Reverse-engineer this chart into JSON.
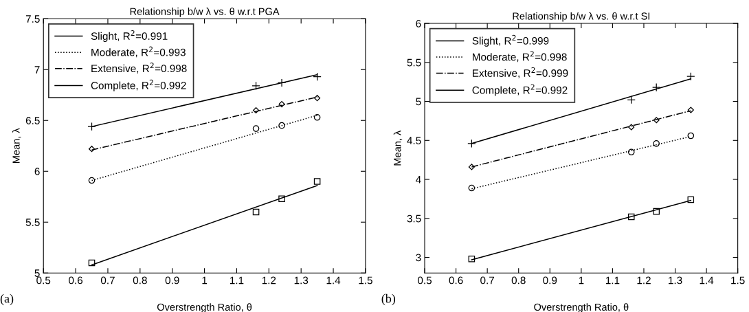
{
  "chart_data": [
    {
      "type": "line",
      "title": "Relationship b/w λ vs. θ w.r.t PGA",
      "xlabel": "Overstrength Ratio, θ",
      "ylabel": "Mean, λ",
      "annotations": [
        "(a)"
      ],
      "xlim": [
        0.5,
        1.5
      ],
      "xticks": [
        0.5,
        0.6,
        0.7,
        0.8,
        0.9,
        1,
        1.1,
        1.2,
        1.3,
        1.4,
        1.5
      ],
      "ylim": [
        5,
        7.5
      ],
      "yticks": [
        5,
        5.5,
        6,
        6.5,
        7,
        7.5
      ],
      "grid": false,
      "legend": "top left",
      "series": [
        {
          "type": "scatter",
          "color": "#000000",
          "marker": "square",
          "x": [
            0.65,
            1.16,
            1.24,
            1.35
          ],
          "values": [
            5.1,
            5.6,
            5.73,
            5.9
          ]
        },
        {
          "type": "scatter",
          "color": "#000000",
          "marker": "circle",
          "x": [
            0.65,
            1.16,
            1.24,
            1.35
          ],
          "values": [
            5.91,
            6.42,
            6.45,
            6.53
          ]
        },
        {
          "type": "scatter",
          "color": "#000000",
          "marker": "diamond",
          "x": [
            0.65,
            1.16,
            1.24,
            1.35
          ],
          "values": [
            6.22,
            6.6,
            6.66,
            6.72
          ]
        },
        {
          "type": "scatter",
          "color": "#000000",
          "marker": "cross",
          "x": [
            0.65,
            1.16,
            1.24,
            1.35
          ],
          "values": [
            6.44,
            6.84,
            6.87,
            6.93
          ]
        },
        {
          "name": "Slight, R$^{2}$=0.991",
          "color": "#000000",
          "marker": "none",
          "line_style": "solid",
          "x": [
            0.65,
            1.35
          ],
          "values": [
            5.08,
            5.86
          ]
        },
        {
          "name": "Moderate, R$^{2}$=0.993",
          "color": "#000000",
          "marker": "none",
          "line_style": "dotted",
          "x": [
            0.65,
            1.35
          ],
          "values": [
            5.91,
            6.55
          ]
        },
        {
          "name": "Extensive, R$^{2}$=0.998",
          "color": "#000000",
          "marker": "none",
          "line_style": "dashdot",
          "x": [
            0.65,
            1.35
          ],
          "values": [
            6.21,
            6.73
          ]
        },
        {
          "name": "Complete, R$^{2}$=0.992",
          "color": "#000000",
          "marker": "none",
          "line_style": "solid",
          "x": [
            0.65,
            1.35
          ],
          "values": [
            6.44,
            6.95
          ]
        }
      ]
    },
    {
      "type": "line",
      "title": "Relationship b/w λ vs. θ w.r.t SI",
      "xlabel": "Overstrength Ratio, θ",
      "ylabel": "Mean, λ",
      "annotations": [
        "(b)"
      ],
      "xlim": [
        0.5,
        1.5
      ],
      "xticks": [
        0.5,
        0.6,
        0.7,
        0.8,
        0.9,
        1,
        1.1,
        1.2,
        1.3,
        1.4,
        1.5
      ],
      "ylim": [
        2.8,
        6
      ],
      "yticks": [
        3,
        3.5,
        4,
        4.5,
        5,
        5.5,
        6
      ],
      "grid": false,
      "legend": "top left",
      "series": [
        {
          "type": "scatter",
          "color": "#000000",
          "marker": "square",
          "x": [
            0.65,
            1.16,
            1.24,
            1.35
          ],
          "values": [
            2.98,
            3.52,
            3.59,
            3.74
          ]
        },
        {
          "type": "scatter",
          "color": "#000000",
          "marker": "circle",
          "x": [
            0.65,
            1.16,
            1.24,
            1.35
          ],
          "values": [
            3.89,
            4.35,
            4.46,
            4.56
          ]
        },
        {
          "type": "scatter",
          "color": "#000000",
          "marker": "diamond",
          "x": [
            0.65,
            1.16,
            1.24,
            1.35
          ],
          "values": [
            4.16,
            4.67,
            4.76,
            4.89
          ]
        },
        {
          "type": "scatter",
          "color": "#000000",
          "marker": "cross",
          "x": [
            0.65,
            1.16,
            1.24,
            1.35
          ],
          "values": [
            4.46,
            5.02,
            5.18,
            5.32
          ]
        },
        {
          "name": "Slight, R$^{2}$=0.999",
          "color": "#000000",
          "marker": "none",
          "line_style": "solid",
          "x": [
            0.65,
            1.35
          ],
          "values": [
            2.97,
            3.73
          ]
        },
        {
          "name": "Moderate, R$^{2}$=0.998",
          "color": "#000000",
          "marker": "none",
          "line_style": "dotted",
          "x": [
            0.65,
            1.35
          ],
          "values": [
            3.88,
            4.55
          ]
        },
        {
          "name": "Extensive, R$^{2}$=0.999",
          "color": "#000000",
          "marker": "none",
          "line_style": "dashdot",
          "x": [
            0.65,
            1.35
          ],
          "values": [
            4.16,
            4.88
          ]
        },
        {
          "name": "Complete, R$^{2}$=0.992",
          "color": "#000000",
          "marker": "none",
          "line_style": "solid",
          "x": [
            0.65,
            1.35
          ],
          "values": [
            4.46,
            5.29
          ]
        }
      ]
    }
  ]
}
